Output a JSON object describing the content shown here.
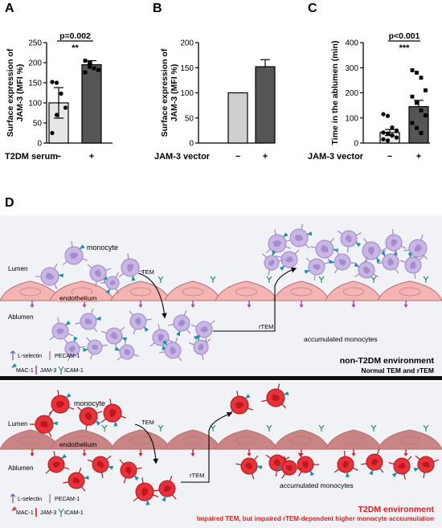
{
  "panels": {
    "A": "A",
    "B": "B",
    "C": "C",
    "D": "D"
  },
  "chart_data": [
    {
      "type": "bar",
      "panel": "A",
      "ylabel": "Surface expression of JAM-3 (MFI %)",
      "xlabel": "T2DM serum",
      "categories": [
        "−",
        "+"
      ],
      "values": [
        100,
        195
      ],
      "errors": [
        38,
        10
      ],
      "colors": [
        "#e6e6e6",
        "#555555"
      ],
      "ylim": [
        0,
        250
      ],
      "yticks": [
        0,
        50,
        100,
        150,
        200,
        250
      ],
      "points": [
        [
          152,
          150,
          123,
          88,
          25,
          70
        ],
        [
          205,
          190,
          186,
          182,
          176,
          199
        ]
      ],
      "annotation": {
        "pvalue": "p=0.002",
        "stars": "**"
      }
    },
    {
      "type": "bar",
      "panel": "B",
      "ylabel": "Surface expression of JAM-3 (MFI %)",
      "xlabel": "JAM-3 vector",
      "categories": [
        "−",
        "+"
      ],
      "values": [
        100,
        152
      ],
      "errors": [
        0,
        14
      ],
      "colors": [
        "#cfcfcf",
        "#555555"
      ],
      "ylim": [
        0,
        200
      ],
      "yticks": [
        0,
        50,
        100,
        150,
        200
      ],
      "points": [
        [],
        []
      ],
      "annotation": null
    },
    {
      "type": "bar",
      "panel": "C",
      "ylabel": "Time in the ablumen (min)",
      "xlabel": "JAM-3 vector",
      "categories": [
        "−",
        "+"
      ],
      "values": [
        42,
        145
      ],
      "errors": [
        12,
        25
      ],
      "colors": [
        "#e6e6e6",
        "#555555"
      ],
      "ylim": [
        0,
        400
      ],
      "yticks": [
        0,
        100,
        200,
        300,
        400
      ],
      "points": [
        [
          115,
          108,
          62,
          50,
          42,
          38,
          30,
          22,
          15,
          10
        ],
        [
          290,
          280,
          260,
          210,
          185,
          160,
          130,
          110,
          80,
          60,
          40
        ]
      ],
      "annotation": {
        "pvalue": "p<0.001",
        "stars": "***"
      }
    }
  ],
  "scene_top": {
    "lumen": "Lumen",
    "ablumen": "Ablumen",
    "monocyte": "monocyte",
    "endothelium": "endothelium",
    "tem": "TEM",
    "rtem": "rTEM",
    "accumulated": "accumulated monocytes",
    "title": "non-T2DM environment",
    "subtitle": "Normal TEM and rTEM",
    "legend": {
      "lselectin": "L-selectin",
      "pecam": "PECAM-1",
      "mac": "MAC-1",
      "jam": "JAM-3",
      "icam": "ICAM-1"
    },
    "cell_color": "#c9b6e4",
    "cell_nucleus": "#9d86c8"
  },
  "scene_bot": {
    "lumen": "Lumen",
    "ablumen": "Ablumen",
    "monocyte": "monocyte",
    "endothelium": "endothelium",
    "tem": "TEM",
    "rtem": "rTEM",
    "accumulated": "accumulated monocytes",
    "title": "T2DM environment",
    "subtitle": "Impaired TEM, but impaired rTEM-dependent higher monocyte acccumulation",
    "legend": {
      "lselectin": "L-selectin",
      "pecam": "PECAM-1",
      "mac": "MAC-1",
      "jam": "JAM-3",
      "icam": "ICAM-1"
    },
    "cell_color": "#e8323a",
    "cell_nucleus": "#b5131b"
  },
  "colors": {
    "endo_top": "#f4b4b4",
    "endo_bot": "#c98585",
    "endo_edge": "#b77070",
    "title_red": "#e02020",
    "icam": "#2f8c6a",
    "jam_top": "#b03cb0",
    "jam_bot": "#d0202a"
  }
}
